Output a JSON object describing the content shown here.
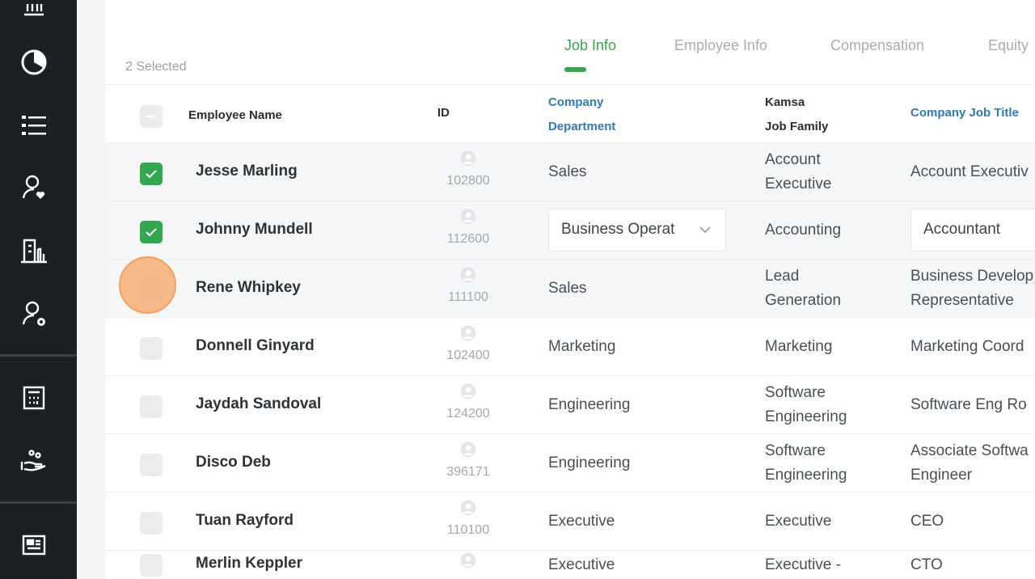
{
  "sidebar": {
    "icons": [
      "bar-chart-icon",
      "pie-chart-icon",
      "list-icon",
      "user-heart-icon",
      "building-icon",
      "user-gear-icon",
      "calculator-icon",
      "hand-people-icon",
      "id-card-icon"
    ]
  },
  "header": {
    "selected_count": "2 Selected",
    "tabs": [
      {
        "label": "Job Info",
        "active": true
      },
      {
        "label": "Employee Info"
      },
      {
        "label": "Compensation"
      },
      {
        "label": "Equity"
      }
    ]
  },
  "table": {
    "columns": {
      "name": "Employee Name",
      "id": "ID",
      "dept1": "Company",
      "dept2": "Department",
      "fam1": "Kamsa",
      "fam2": "Job Family",
      "title": "Company Job Title"
    },
    "rows": [
      {
        "checked": true,
        "name": "Jesse Marling",
        "id": "102800",
        "dept": "Sales",
        "fam1": "Account",
        "fam2": "Executive",
        "title1": "Account Executiv",
        "title2": ""
      },
      {
        "checked": true,
        "name": "Johnny Mundell",
        "id": "112600",
        "dept": "Business Operat",
        "fam1": "Accounting",
        "fam2": "",
        "title1": "Accountant",
        "title2": ""
      },
      {
        "checked": false,
        "name": "Rene Whipkey",
        "id": "111100",
        "dept": "Sales",
        "fam1": "Lead",
        "fam2": "Generation",
        "title1": "Business Develop",
        "title2": "Representative"
      },
      {
        "checked": false,
        "name": "Donnell Ginyard",
        "id": "102400",
        "dept": "Marketing",
        "fam1": "Marketing",
        "fam2": "",
        "title1": "Marketing Coord",
        "title2": ""
      },
      {
        "checked": false,
        "name": "Jaydah Sandoval",
        "id": "124200",
        "dept": "Engineering",
        "fam1": "Software",
        "fam2": "Engineering",
        "title1": "Software Eng Ro",
        "title2": ""
      },
      {
        "checked": false,
        "name": "Disco Deb",
        "id": "396171",
        "dept": "Engineering",
        "fam1": "Software",
        "fam2": "Engineering",
        "title1": "Associate Softwa",
        "title2": "Engineer"
      },
      {
        "checked": false,
        "name": "Tuan Rayford",
        "id": "110100",
        "dept": "Executive",
        "fam1": "Executive",
        "fam2": "",
        "title1": "CEO",
        "title2": ""
      },
      {
        "checked": false,
        "name": "Merlin Keppler",
        "id": "",
        "dept": "Executive",
        "fam1": "Executive -",
        "fam2": "",
        "title1": "CTO",
        "title2": ""
      }
    ]
  },
  "colors": {
    "accent": "#3aa34e",
    "link": "#2e7bb8",
    "sidebar": "#1c1f24"
  }
}
